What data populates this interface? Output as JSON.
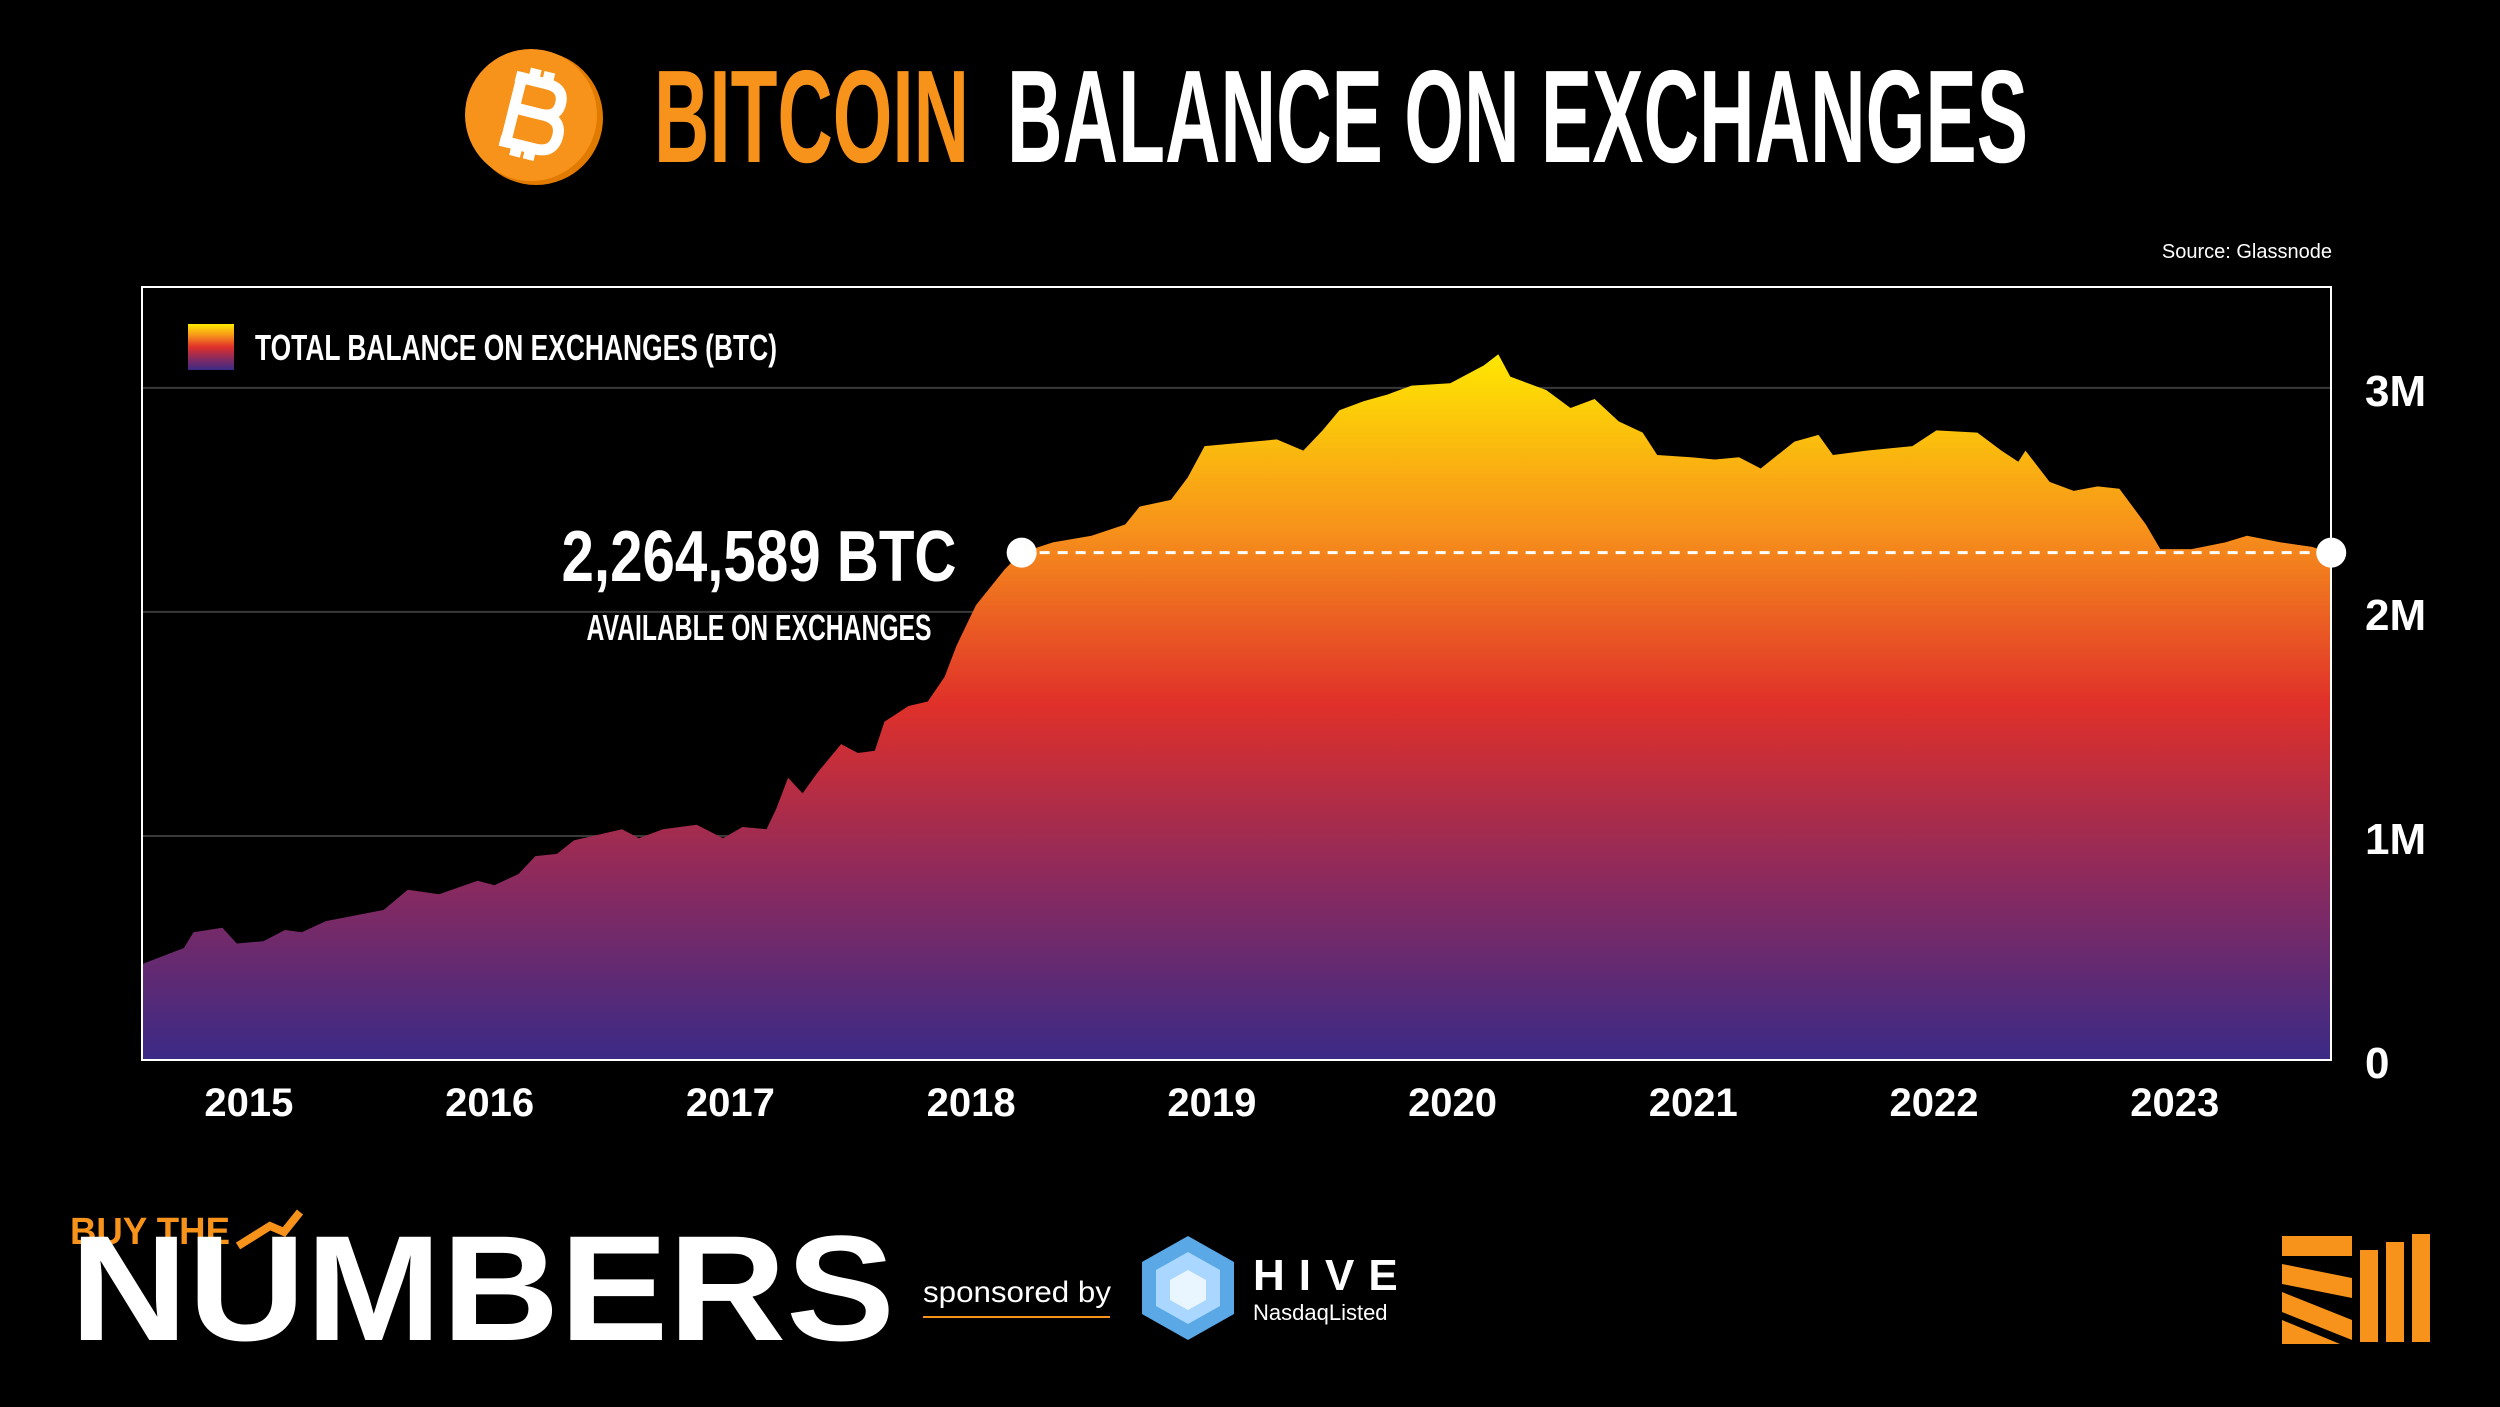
{
  "chart_data": {
    "type": "area",
    "title_highlight": "BITCOIN",
    "title": "BALANCE ON EXCHANGES",
    "source": "Source: Glassnode",
    "x": [
      2014.56,
      2014.73,
      2014.77,
      2014.89,
      2014.95,
      2015.06,
      2015.15,
      2015.22,
      2015.32,
      2015.56,
      2015.66,
      2015.79,
      2015.95,
      2016.02,
      2016.12,
      2016.19,
      2016.28,
      2016.35,
      2016.55,
      2016.62,
      2016.72,
      2016.86,
      2016.97,
      2017.05,
      2017.15,
      2017.19,
      2017.24,
      2017.3,
      2017.36,
      2017.46,
      2017.53,
      2017.6,
      2017.64,
      2017.74,
      2017.82,
      2017.89,
      2017.94,
      2018.02,
      2018.14,
      2018.21,
      2018.34,
      2018.5,
      2018.64,
      2018.7,
      2018.83,
      2018.9,
      2018.97,
      2019.27,
      2019.38,
      2019.46,
      2019.53,
      2019.63,
      2019.73,
      2019.83,
      2019.99,
      2020.13,
      2020.19,
      2020.24,
      2020.39,
      2020.49,
      2020.59,
      2020.69,
      2020.79,
      2020.85,
      2020.99,
      2021.09,
      2021.19,
      2021.28,
      2021.42,
      2021.52,
      2021.58,
      2021.72,
      2021.91,
      2022.01,
      2022.18,
      2022.28,
      2022.35,
      2022.38,
      2022.48,
      2022.58,
      2022.68,
      2022.77,
      2022.88,
      2022.94,
      2023.07,
      2023.21,
      2023.3,
      2023.44,
      2023.57,
      2023.65
    ],
    "series": [
      {
        "name": "TOTAL BALANCE ON EXCHANGES (BTC)",
        "color": [
          "#ffea00",
          "#f7931a",
          "#e0302a",
          "#8a2a5e",
          "#3a2a86"
        ],
        "values": [
          430000,
          500000,
          570000,
          590000,
          520000,
          530000,
          580000,
          570000,
          620000,
          670000,
          760000,
          740000,
          800000,
          780000,
          830000,
          910000,
          920000,
          980000,
          1030000,
          990000,
          1030000,
          1050000,
          990000,
          1040000,
          1030000,
          1120000,
          1260000,
          1190000,
          1280000,
          1410000,
          1370000,
          1380000,
          1510000,
          1580000,
          1600000,
          1710000,
          1850000,
          2030000,
          2190000,
          2264589,
          2310000,
          2340000,
          2390000,
          2470000,
          2500000,
          2600000,
          2740000,
          2770000,
          2720000,
          2810000,
          2900000,
          2940000,
          2970000,
          3010000,
          3020000,
          3100000,
          3150000,
          3050000,
          2990000,
          2910000,
          2950000,
          2850000,
          2800000,
          2700000,
          2690000,
          2680000,
          2690000,
          2640000,
          2760000,
          2790000,
          2700000,
          2720000,
          2740000,
          2810000,
          2800000,
          2720000,
          2670000,
          2720000,
          2580000,
          2540000,
          2560000,
          2550000,
          2390000,
          2280000,
          2280000,
          2310000,
          2340000,
          2310000,
          2290000,
          2264589
        ]
      }
    ],
    "xlim": [
      2014.556,
      2023.649
    ],
    "xticks": [
      2015,
      2016,
      2017,
      2018,
      2019,
      2020,
      2021,
      2022,
      2023
    ],
    "ylim": [
      0,
      3450000
    ],
    "yticks": [
      0,
      {
        "value": 1000000,
        "label": "1M"
      },
      {
        "value": 2000000,
        "label": "2M"
      },
      {
        "value": 3000000,
        "label": "3M"
      }
    ],
    "grid": true,
    "legend": "upper left",
    "reference": {
      "value": 2264589,
      "label": "2,264,589 BTC",
      "sublabel": "AVAILABLE ON EXCHANGES",
      "x_from": 2018.21
    }
  },
  "branding": {
    "top": "BUY THE",
    "main": "NUMBERS",
    "sponsor": "sponsored by",
    "partner": "HIVE",
    "partner_sub": "NasdaqListed"
  }
}
